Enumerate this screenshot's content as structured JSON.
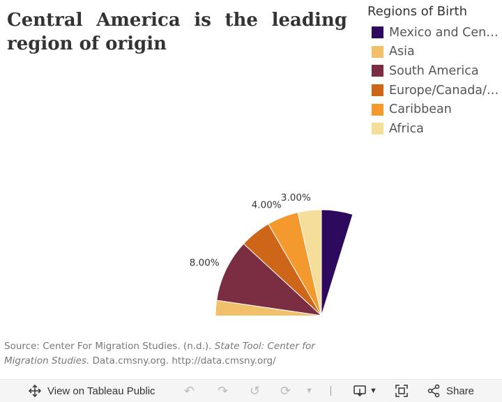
{
  "title": "Central America is the leading region of origin",
  "legend": {
    "title": "Regions of Birth",
    "items": [
      {
        "label": "Mexico and Cen…",
        "color": "#2e0a5e"
      },
      {
        "label": "Asia",
        "color": "#f2c06a"
      },
      {
        "label": "South America",
        "color": "#7b2d41"
      },
      {
        "label": "Europe/Canada/…",
        "color": "#cd6619"
      },
      {
        "label": "Caribbean",
        "color": "#f3992d"
      },
      {
        "label": "Africa",
        "color": "#f5de9a"
      }
    ]
  },
  "chart_data": {
    "type": "pie",
    "title": "Central America is the leading region of origin",
    "legend_title": "Regions of Birth",
    "legend_position": "top-right",
    "visible_portion": "top-left quadrant",
    "slices": [
      {
        "label": "Mexico and Cen…",
        "value": 8.0,
        "color": "#2e0a5e",
        "data_label": ""
      },
      {
        "label": "Africa",
        "value": 3.0,
        "color": "#f5de9a",
        "data_label": "3.00%"
      },
      {
        "label": "Caribbean",
        "value": 4.0,
        "color": "#f3992d",
        "data_label": "4.00%"
      },
      {
        "label": "Europe/Canada/…",
        "value": 4.0,
        "color": "#cd6619",
        "data_label": ""
      },
      {
        "label": "South America",
        "value": 8.0,
        "color": "#7b2d41",
        "data_label": "8.00%"
      },
      {
        "label": "Asia",
        "value": 3.0,
        "color": "#f2c06a",
        "data_label": ""
      }
    ]
  },
  "source": {
    "prefix": "Source: Center For Migration Studies. (n.d.).",
    "italic": "State Tool: Center for Migration Studies.",
    "suffix": "Data.cmsny.org. http://data.cmsny.org/"
  },
  "toolbar": {
    "view_label": "View on Tableau Public",
    "share_label": "Share"
  }
}
